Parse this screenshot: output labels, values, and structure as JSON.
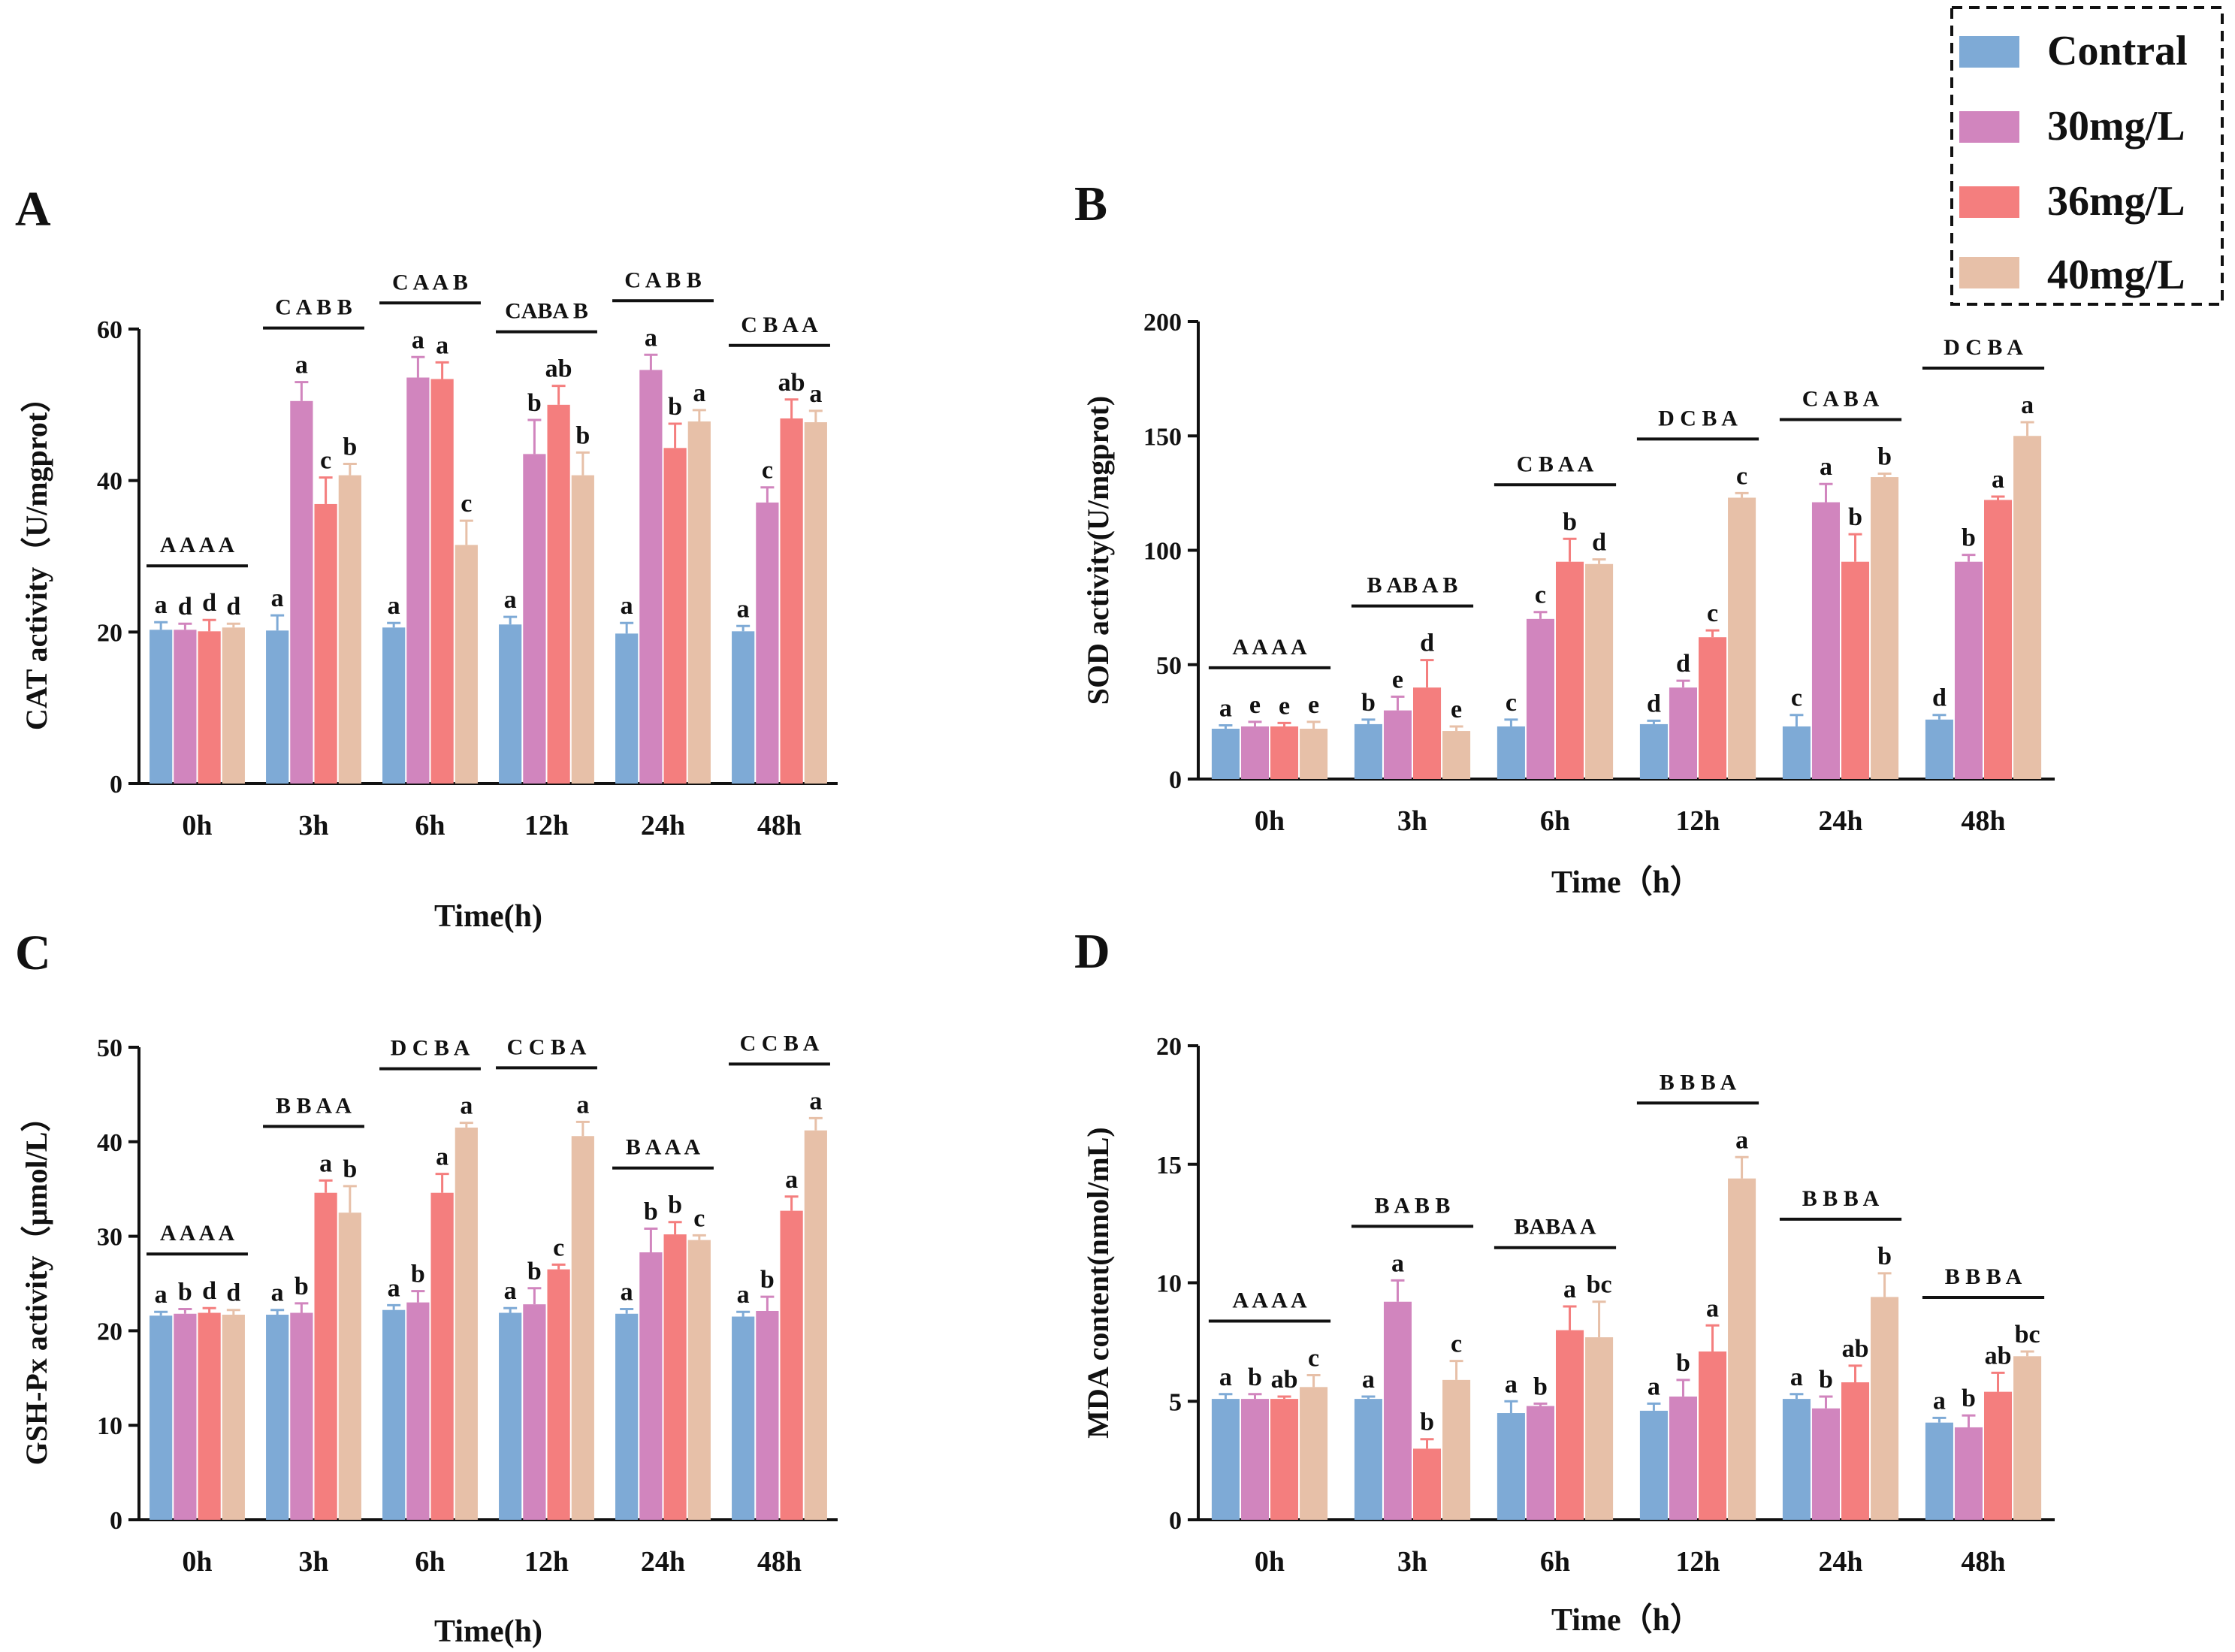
{
  "figure": {
    "colors": [
      "#7eaad6",
      "#d185be",
      "#f47e7e",
      "#e7c0a8"
    ],
    "legend_labels": [
      "Contral",
      "30mg/L",
      "36mg/L",
      "40mg/L"
    ]
  },
  "chart_data": [
    {
      "type": "bar",
      "panel_label": "A",
      "ylabel": "CAT activity（U/mgprot）",
      "xlabel": "Time(h)",
      "categories": [
        "0h",
        "3h",
        "6h",
        "12h",
        "24h",
        "48h"
      ],
      "ylim": [
        0,
        60
      ],
      "yticks": [
        0,
        20,
        40,
        60
      ],
      "series": [
        {
          "name": "Contral",
          "values": [
            20.3,
            20.2,
            20.6,
            21.0,
            19.8,
            20.1
          ],
          "errors": [
            1.0,
            2.0,
            0.6,
            1.0,
            1.4,
            0.7
          ],
          "letters": [
            "a",
            "a",
            "a",
            "a",
            "a",
            "a"
          ]
        },
        {
          "name": "30mg/L",
          "values": [
            20.3,
            50.5,
            53.6,
            43.5,
            54.6,
            37.1
          ],
          "errors": [
            0.8,
            2.5,
            2.7,
            4.5,
            2.0,
            2.0
          ],
          "letters": [
            "d",
            "a",
            "a",
            "b",
            "a",
            "c"
          ]
        },
        {
          "name": "36mg/L",
          "values": [
            20.1,
            36.9,
            53.4,
            50.0,
            44.3,
            48.2
          ],
          "errors": [
            1.5,
            3.5,
            2.2,
            2.5,
            3.2,
            2.5
          ],
          "letters": [
            "d",
            "c",
            "a",
            "ab",
            "b",
            "ab"
          ]
        },
        {
          "name": "40mg/L",
          "values": [
            20.6,
            40.7,
            31.5,
            40.7,
            47.8,
            47.7
          ],
          "errors": [
            0.5,
            1.5,
            3.2,
            3.0,
            1.5,
            1.5
          ],
          "letters": [
            "d",
            "b",
            "c",
            "b",
            "a",
            "a"
          ]
        }
      ],
      "group_letters": [
        "A A A A",
        "C A B B",
        "C A A B",
        "CABA B",
        "C A B B",
        "C B A A"
      ]
    },
    {
      "type": "bar",
      "panel_label": "B",
      "ylabel": "SOD activity(U/mgprot)",
      "xlabel": "Time（h）",
      "categories": [
        "0h",
        "3h",
        "6h",
        "12h",
        "24h",
        "48h"
      ],
      "ylim": [
        0,
        200
      ],
      "yticks": [
        0,
        50,
        100,
        150,
        200
      ],
      "series": [
        {
          "name": "Contral",
          "values": [
            22,
            24,
            23,
            24,
            23,
            26
          ],
          "errors": [
            1.5,
            2,
            3,
            1.5,
            5,
            2
          ],
          "letters": [
            "a",
            "b",
            "c",
            "d",
            "c",
            "d"
          ]
        },
        {
          "name": "30mg/L",
          "values": [
            23,
            30,
            70,
            40,
            121,
            95
          ],
          "errors": [
            2,
            6,
            3,
            3,
            8,
            3
          ],
          "letters": [
            "e",
            "e",
            "c",
            "d",
            "a",
            "b"
          ]
        },
        {
          "name": "36mg/L",
          "values": [
            23,
            40,
            95,
            62,
            95,
            122
          ],
          "errors": [
            1.5,
            12,
            10,
            3,
            12,
            1.5
          ],
          "letters": [
            "e",
            "d",
            "b",
            "c",
            "b",
            "a"
          ]
        },
        {
          "name": "40mg/L",
          "values": [
            22,
            21,
            94,
            123,
            132,
            150
          ],
          "errors": [
            3,
            2,
            2,
            2,
            1.5,
            6
          ],
          "letters": [
            "e",
            "e",
            "d",
            "c",
            "b",
            "a"
          ]
        }
      ],
      "group_letters": [
        "A A A A",
        "B AB A B",
        "C B A A",
        "D C B A",
        "C A B A",
        "D C B A"
      ]
    },
    {
      "type": "bar",
      "panel_label": "C",
      "ylabel": "GSH-Px activity（μmol/L）",
      "xlabel": "Time(h)",
      "categories": [
        "0h",
        "3h",
        "6h",
        "12h",
        "24h",
        "48h"
      ],
      "ylim": [
        0,
        50
      ],
      "yticks": [
        0,
        10,
        20,
        30,
        40,
        50
      ],
      "series": [
        {
          "name": "Contral",
          "values": [
            21.6,
            21.7,
            22.2,
            21.9,
            21.8,
            21.5
          ],
          "errors": [
            0.4,
            0.5,
            0.5,
            0.5,
            0.5,
            0.5
          ],
          "letters": [
            "a",
            "a",
            "a",
            "a",
            "a",
            "a"
          ]
        },
        {
          "name": "30mg/L",
          "values": [
            21.8,
            21.9,
            23.0,
            22.8,
            28.3,
            22.1
          ],
          "errors": [
            0.5,
            1.0,
            1.2,
            1.7,
            2.5,
            1.5
          ],
          "letters": [
            "b",
            "b",
            "b",
            "b",
            "b",
            "b"
          ]
        },
        {
          "name": "36mg/L",
          "values": [
            21.9,
            34.6,
            34.6,
            26.5,
            30.2,
            32.7
          ],
          "errors": [
            0.5,
            1.3,
            2.0,
            0.5,
            1.3,
            1.5
          ],
          "letters": [
            "d",
            "a",
            "a",
            "c",
            "b",
            "a"
          ]
        },
        {
          "name": "40mg/L",
          "values": [
            21.7,
            32.5,
            41.5,
            40.6,
            29.6,
            41.2
          ],
          "errors": [
            0.5,
            2.8,
            0.5,
            1.5,
            0.5,
            1.3
          ],
          "letters": [
            "d",
            "b",
            "a",
            "a",
            "c",
            "a"
          ]
        }
      ],
      "group_letters": [
        "A A A A",
        "B B A A",
        "D C B A",
        "C C B A",
        "B A A A",
        "C C B A"
      ]
    },
    {
      "type": "bar",
      "panel_label": "D",
      "ylabel": "MDA content(nmol/mL)",
      "xlabel": "Time（h）",
      "categories": [
        "0h",
        "3h",
        "6h",
        "12h",
        "24h",
        "48h"
      ],
      "ylim": [
        0,
        20
      ],
      "yticks": [
        0,
        5,
        10,
        15,
        20
      ],
      "series": [
        {
          "name": "Contral",
          "values": [
            5.1,
            5.1,
            4.5,
            4.6,
            5.1,
            4.1
          ],
          "errors": [
            0.2,
            0.1,
            0.5,
            0.3,
            0.2,
            0.2
          ],
          "letters": [
            "a",
            "a",
            "a",
            "a",
            "a",
            "a"
          ]
        },
        {
          "name": "30mg/L",
          "values": [
            5.1,
            9.2,
            4.8,
            5.2,
            4.7,
            3.9
          ],
          "errors": [
            0.2,
            0.9,
            0.1,
            0.7,
            0.5,
            0.5
          ],
          "letters": [
            "b",
            "a",
            "b",
            "b",
            "b",
            "b"
          ]
        },
        {
          "name": "36mg/L",
          "values": [
            5.1,
            3.0,
            8.0,
            7.1,
            5.8,
            5.4
          ],
          "errors": [
            0.1,
            0.4,
            1.0,
            1.1,
            0.7,
            0.8
          ],
          "letters": [
            "ab",
            "b",
            "a",
            "a",
            "ab",
            "ab"
          ]
        },
        {
          "name": "40mg/L",
          "values": [
            5.6,
            5.9,
            7.7,
            14.4,
            9.4,
            6.9
          ],
          "errors": [
            0.5,
            0.8,
            1.5,
            0.9,
            1.0,
            0.2
          ],
          "letters": [
            "c",
            "c",
            "bc",
            "a",
            "b",
            "bc"
          ]
        }
      ],
      "group_letters": [
        "A A A A",
        "B A B B",
        "BABA A",
        "B B B A",
        "B B B A",
        "B B B A"
      ]
    }
  ]
}
